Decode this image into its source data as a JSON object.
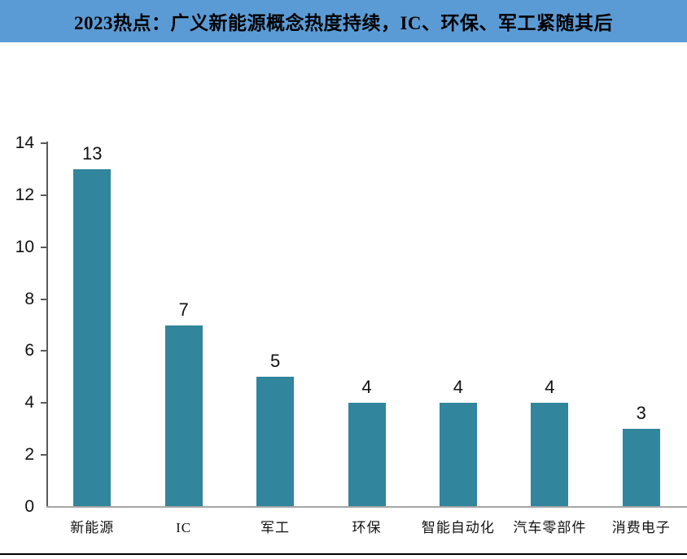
{
  "header": {
    "title": "2023热点：广义新能源概念热度持续，IC、环保、军工紧随其后",
    "background_color": "#5B9BD5",
    "text_color": "#000000"
  },
  "chart_data": {
    "type": "bar",
    "title": "2023热点：广义新能源概念热度持续，IC、环保、军工紧随其后",
    "categories": [
      "新能源",
      "IC",
      "军工",
      "环保",
      "智能自动化",
      "汽车零部件",
      "消费电子"
    ],
    "values": [
      13,
      7,
      5,
      4,
      4,
      4,
      3
    ],
    "data_labels": [
      "13",
      "7",
      "5",
      "4",
      "4",
      "4",
      "3"
    ],
    "xlabel": "",
    "ylabel": "",
    "ylim": [
      0,
      14
    ],
    "yticks": [
      0,
      2,
      4,
      6,
      8,
      10,
      12,
      14
    ],
    "grid": false,
    "legend": "none",
    "bar_color": "#31859C",
    "axis_color": "#595959",
    "baseline_color": "#A6A6A6"
  }
}
